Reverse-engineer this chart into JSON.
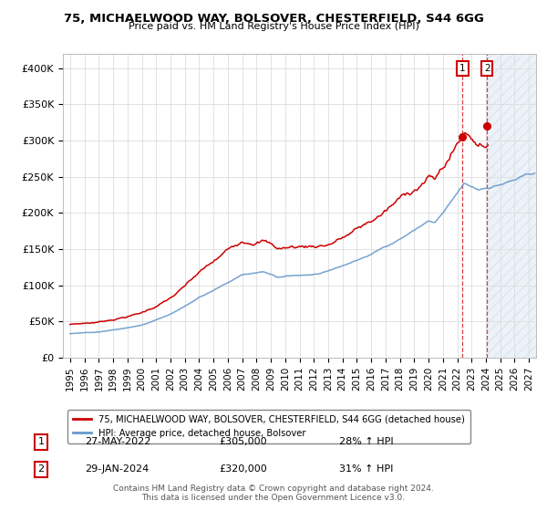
{
  "title": "75, MICHAELWOOD WAY, BOLSOVER, CHESTERFIELD, S44 6GG",
  "subtitle": "Price paid vs. HM Land Registry's House Price Index (HPI)",
  "ylabel_ticks": [
    "£0",
    "£50K",
    "£100K",
    "£150K",
    "£200K",
    "£250K",
    "£300K",
    "£350K",
    "£400K"
  ],
  "ylim": [
    0,
    420000
  ],
  "xlim_start": 1994.5,
  "xlim_end": 2027.5,
  "legend_line1": "75, MICHAELWOOD WAY, BOLSOVER, CHESTERFIELD, S44 6GG (detached house)",
  "legend_line2": "HPI: Average price, detached house, Bolsover",
  "annotation1_label": "1",
  "annotation1_date": "27-MAY-2022",
  "annotation1_price": "£305,000",
  "annotation1_hpi": "28% ↑ HPI",
  "annotation2_label": "2",
  "annotation2_date": "29-JAN-2024",
  "annotation2_price": "£320,000",
  "annotation2_hpi": "31% ↑ HPI",
  "footer": "Contains HM Land Registry data © Crown copyright and database right 2024.\nThis data is licensed under the Open Government Licence v3.0.",
  "red_color": "#cc0000",
  "blue_color": "#6699cc",
  "hpi_sale1_x": 2022.38,
  "hpi_sale1_y": 305000,
  "hpi_sale2_x": 2024.08,
  "hpi_sale2_y": 320000,
  "background_color": "#ffffff",
  "grid_color": "#dddddd",
  "future_start": 2024.15
}
